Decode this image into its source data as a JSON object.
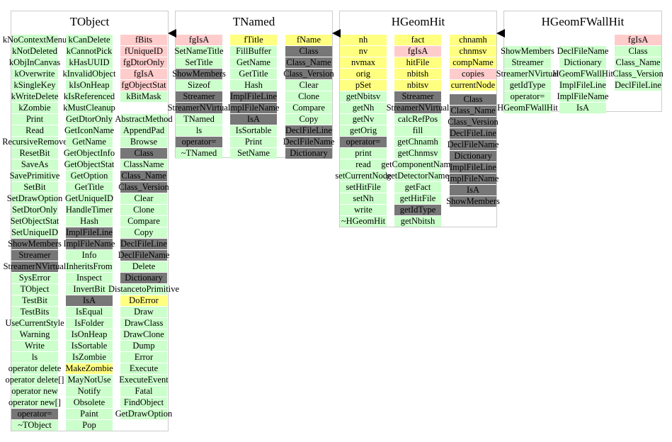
{
  "colors": {
    "g": "#ccffcc",
    "p": "#ffcccc",
    "y": "#ffff80",
    "d": "#777777"
  },
  "classes": [
    {
      "name": "TObject",
      "columns": [
        {
          "start": 0,
          "cells": [
            [
              "kNoContextMenu",
              "g"
            ],
            [
              "kNotDeleted",
              "g"
            ],
            [
              "kObjInCanvas",
              "g"
            ],
            [
              "kOverwrite",
              "g"
            ],
            [
              "kSingleKey",
              "g"
            ],
            [
              "kWriteDelete",
              "g"
            ],
            [
              "kZombie",
              "g"
            ],
            [
              "Print",
              "g"
            ],
            [
              "Read",
              "g"
            ],
            [
              "RecursiveRemove",
              "g"
            ],
            [
              "ResetBit",
              "g"
            ],
            [
              "SaveAs",
              "g"
            ],
            [
              "SavePrimitive",
              "g"
            ],
            [
              "SetBit",
              "g"
            ],
            [
              "SetDrawOption",
              "g"
            ],
            [
              "SetDtorOnly",
              "g"
            ],
            [
              "SetObjectStat",
              "g"
            ],
            [
              "SetUniqueID",
              "g"
            ],
            [
              "ShowMembers",
              "d"
            ],
            [
              "Streamer",
              "d"
            ],
            [
              "StreamerNVirtual",
              "d"
            ],
            [
              "SysError",
              "g"
            ],
            [
              "TObject",
              "g"
            ],
            [
              "TestBit",
              "g"
            ],
            [
              "TestBits",
              "g"
            ],
            [
              "UseCurrentStyle",
              "g"
            ],
            [
              "Warning",
              "g"
            ],
            [
              "Write",
              "g"
            ],
            [
              "ls",
              "g"
            ],
            [
              "operator delete",
              "g"
            ],
            [
              "operator delete[]",
              "g"
            ],
            [
              "operator new",
              "g"
            ],
            [
              "operator new[]",
              "g"
            ],
            [
              "operator=",
              "d"
            ],
            [
              "~TObject",
              "g"
            ]
          ]
        },
        {
          "start": 0,
          "cells": [
            [
              "kCanDelete",
              "g"
            ],
            [
              "kCannotPick",
              "g"
            ],
            [
              "kHasUUID",
              "g"
            ],
            [
              "kInvalidObject",
              "g"
            ],
            [
              "kIsOnHeap",
              "g"
            ],
            [
              "kIsReferenced",
              "g"
            ],
            [
              "kMustCleanup",
              "g"
            ],
            [
              "GetDtorOnly",
              "g"
            ],
            [
              "GetIconName",
              "g"
            ],
            [
              "GetName",
              "g"
            ],
            [
              "GetObjectInfo",
              "g"
            ],
            [
              "GetObjectStat",
              "g"
            ],
            [
              "GetOption",
              "g"
            ],
            [
              "GetTitle",
              "g"
            ],
            [
              "GetUniqueID",
              "g"
            ],
            [
              "HandleTimer",
              "g"
            ],
            [
              "Hash",
              "g"
            ],
            [
              "ImplFileLine",
              "d"
            ],
            [
              "ImplFileName",
              "d"
            ],
            [
              "Info",
              "g"
            ],
            [
              "InheritsFrom",
              "g"
            ],
            [
              "Inspect",
              "g"
            ],
            [
              "InvertBit",
              "g"
            ],
            [
              "IsA",
              "d"
            ],
            [
              "IsEqual",
              "g"
            ],
            [
              "IsFolder",
              "g"
            ],
            [
              "IsOnHeap",
              "g"
            ],
            [
              "IsSortable",
              "g"
            ],
            [
              "IsZombie",
              "g"
            ],
            [
              "MakeZombie",
              "y"
            ],
            [
              "MayNotUse",
              "g"
            ],
            [
              "Notify",
              "g"
            ],
            [
              "Obsolete",
              "g"
            ],
            [
              "Paint",
              "g"
            ],
            [
              "Pop",
              "g"
            ]
          ]
        },
        {
          "start": 0,
          "cells": [
            [
              "fBits",
              "p"
            ],
            [
              "fUniqueID",
              "p"
            ],
            [
              "fgDtorOnly",
              "p"
            ],
            [
              "fgIsA",
              "p"
            ],
            [
              "fgObjectStat",
              "p"
            ],
            [
              "kBitMask",
              "g"
            ],
            [
              "",
              ""
            ],
            [
              "AbstractMethod",
              "g"
            ],
            [
              "AppendPad",
              "g"
            ],
            [
              "Browse",
              "g"
            ],
            [
              "Class",
              "d"
            ],
            [
              "ClassName",
              "g"
            ],
            [
              "Class_Name",
              "d"
            ],
            [
              "Class_Version",
              "d"
            ],
            [
              "Clear",
              "g"
            ],
            [
              "Clone",
              "g"
            ],
            [
              "Compare",
              "g"
            ],
            [
              "Copy",
              "g"
            ],
            [
              "DeclFileLine",
              "d"
            ],
            [
              "DeclFileName",
              "d"
            ],
            [
              "Delete",
              "g"
            ],
            [
              "Dictionary",
              "d"
            ],
            [
              "DistancetoPrimitive",
              "g"
            ],
            [
              "DoError",
              "y"
            ],
            [
              "Draw",
              "g"
            ],
            [
              "DrawClass",
              "g"
            ],
            [
              "DrawClone",
              "g"
            ],
            [
              "Dump",
              "g"
            ],
            [
              "Error",
              "g"
            ],
            [
              "Execute",
              "g"
            ],
            [
              "ExecuteEvent",
              "g"
            ],
            [
              "Fatal",
              "g"
            ],
            [
              "FindObject",
              "g"
            ],
            [
              "GetDrawOption",
              "g"
            ]
          ]
        }
      ]
    },
    {
      "name": "TNamed",
      "columns": [
        {
          "start": 0,
          "cells": [
            [
              "fgIsA",
              "p"
            ],
            [
              "SetNameTitle",
              "g"
            ],
            [
              "SetTitle",
              "g"
            ],
            [
              "ShowMembers",
              "d"
            ],
            [
              "Sizeof",
              "g"
            ],
            [
              "Streamer",
              "d"
            ],
            [
              "StreamerNVirtual",
              "d"
            ],
            [
              "TNamed",
              "g"
            ],
            [
              "ls",
              "g"
            ],
            [
              "operator=",
              "d"
            ],
            [
              "~TNamed",
              "g"
            ]
          ]
        },
        {
          "start": 0,
          "cells": [
            [
              "fTitle",
              "y"
            ],
            [
              "FillBuffer",
              "g"
            ],
            [
              "GetName",
              "g"
            ],
            [
              "GetTitle",
              "g"
            ],
            [
              "Hash",
              "g"
            ],
            [
              "ImplFileLine",
              "d"
            ],
            [
              "ImplFileName",
              "d"
            ],
            [
              "IsA",
              "d"
            ],
            [
              "IsSortable",
              "g"
            ],
            [
              "Print",
              "g"
            ],
            [
              "SetName",
              "g"
            ]
          ]
        },
        {
          "start": 0,
          "cells": [
            [
              "fName",
              "y"
            ],
            [
              "Class",
              "d"
            ],
            [
              "Class_Name",
              "d"
            ],
            [
              "Class_Version",
              "d"
            ],
            [
              "Clear",
              "g"
            ],
            [
              "Clone",
              "g"
            ],
            [
              "Compare",
              "g"
            ],
            [
              "Copy",
              "g"
            ],
            [
              "DeclFileLine",
              "d"
            ],
            [
              "DeclFileName",
              "d"
            ],
            [
              "Dictionary",
              "d"
            ]
          ]
        }
      ]
    },
    {
      "name": "HGeomHit",
      "columns": [
        {
          "start": 0,
          "cells": [
            [
              "nh",
              "y"
            ],
            [
              "nv",
              "y"
            ],
            [
              "nvmax",
              "y"
            ],
            [
              "orig",
              "y"
            ],
            [
              "pSet",
              "y"
            ],
            [
              "getNbitsv",
              "g"
            ],
            [
              "getNh",
              "g"
            ],
            [
              "getNv",
              "g"
            ],
            [
              "getOrig",
              "g"
            ],
            [
              "operator=",
              "d"
            ],
            [
              "print",
              "g"
            ],
            [
              "read",
              "g"
            ],
            [
              "setCurrentNode",
              "g"
            ],
            [
              "setHitFile",
              "g"
            ],
            [
              "setNh",
              "g"
            ],
            [
              "write",
              "g"
            ],
            [
              "~HGeomHit",
              "g"
            ]
          ]
        },
        {
          "start": 0,
          "cells": [
            [
              "fact",
              "y"
            ],
            [
              "fgIsA",
              "p"
            ],
            [
              "hitFile",
              "y"
            ],
            [
              "nbitsh",
              "y"
            ],
            [
              "nbitsv",
              "y"
            ],
            [
              "Streamer",
              "d"
            ],
            [
              "StreamerNVirtual",
              "d"
            ],
            [
              "calcRefPos",
              "g"
            ],
            [
              "fill",
              "g"
            ],
            [
              "getChnamh",
              "g"
            ],
            [
              "getChnmsv",
              "g"
            ],
            [
              "getComponentName",
              "g"
            ],
            [
              "getDetectorName",
              "g"
            ],
            [
              "getFact",
              "g"
            ],
            [
              "getHitFile",
              "g"
            ],
            [
              "getIdType",
              "d"
            ],
            [
              "getNbitsh",
              "g"
            ]
          ]
        },
        {
          "start": 0,
          "split": 5,
          "cells": [
            [
              "chnamh",
              "y"
            ],
            [
              "chnmsv",
              "y"
            ],
            [
              "compName",
              "y"
            ],
            [
              "copies",
              "p"
            ],
            [
              "currentNode",
              "y"
            ],
            [
              "Class",
              "d"
            ],
            [
              "Class_Name",
              "d"
            ],
            [
              "Class_Version",
              "d"
            ],
            [
              "DeclFileLine",
              "d"
            ],
            [
              "DeclFileName",
              "d"
            ],
            [
              "Dictionary",
              "d"
            ],
            [
              "ImplFileLine",
              "d"
            ],
            [
              "ImplFileName",
              "d"
            ],
            [
              "IsA",
              "d"
            ],
            [
              "ShowMembers",
              "d"
            ]
          ]
        }
      ]
    },
    {
      "name": "HGeomFWallHit",
      "columns": [
        {
          "start": 1,
          "cells": [
            [
              "ShowMembers",
              "g"
            ],
            [
              "Streamer",
              "g"
            ],
            [
              "StreamerNVirtual",
              "g"
            ],
            [
              "getIdType",
              "g"
            ],
            [
              "operator=",
              "g"
            ],
            [
              "HGeomFWallHit",
              "g"
            ]
          ]
        },
        {
          "start": 1,
          "cells": [
            [
              "DeclFileName",
              "g"
            ],
            [
              "Dictionary",
              "g"
            ],
            [
              "HGeomFWallHit",
              "g"
            ],
            [
              "ImplFileLine",
              "g"
            ],
            [
              "ImplFileName",
              "g"
            ],
            [
              "IsA",
              "g"
            ]
          ]
        },
        {
          "start": 0,
          "cells": [
            [
              "fgIsA",
              "p"
            ],
            [
              "Class",
              "g"
            ],
            [
              "Class_Name",
              "g"
            ],
            [
              "Class_Version",
              "g"
            ],
            [
              "DeclFileLine",
              "g"
            ]
          ]
        }
      ]
    }
  ]
}
